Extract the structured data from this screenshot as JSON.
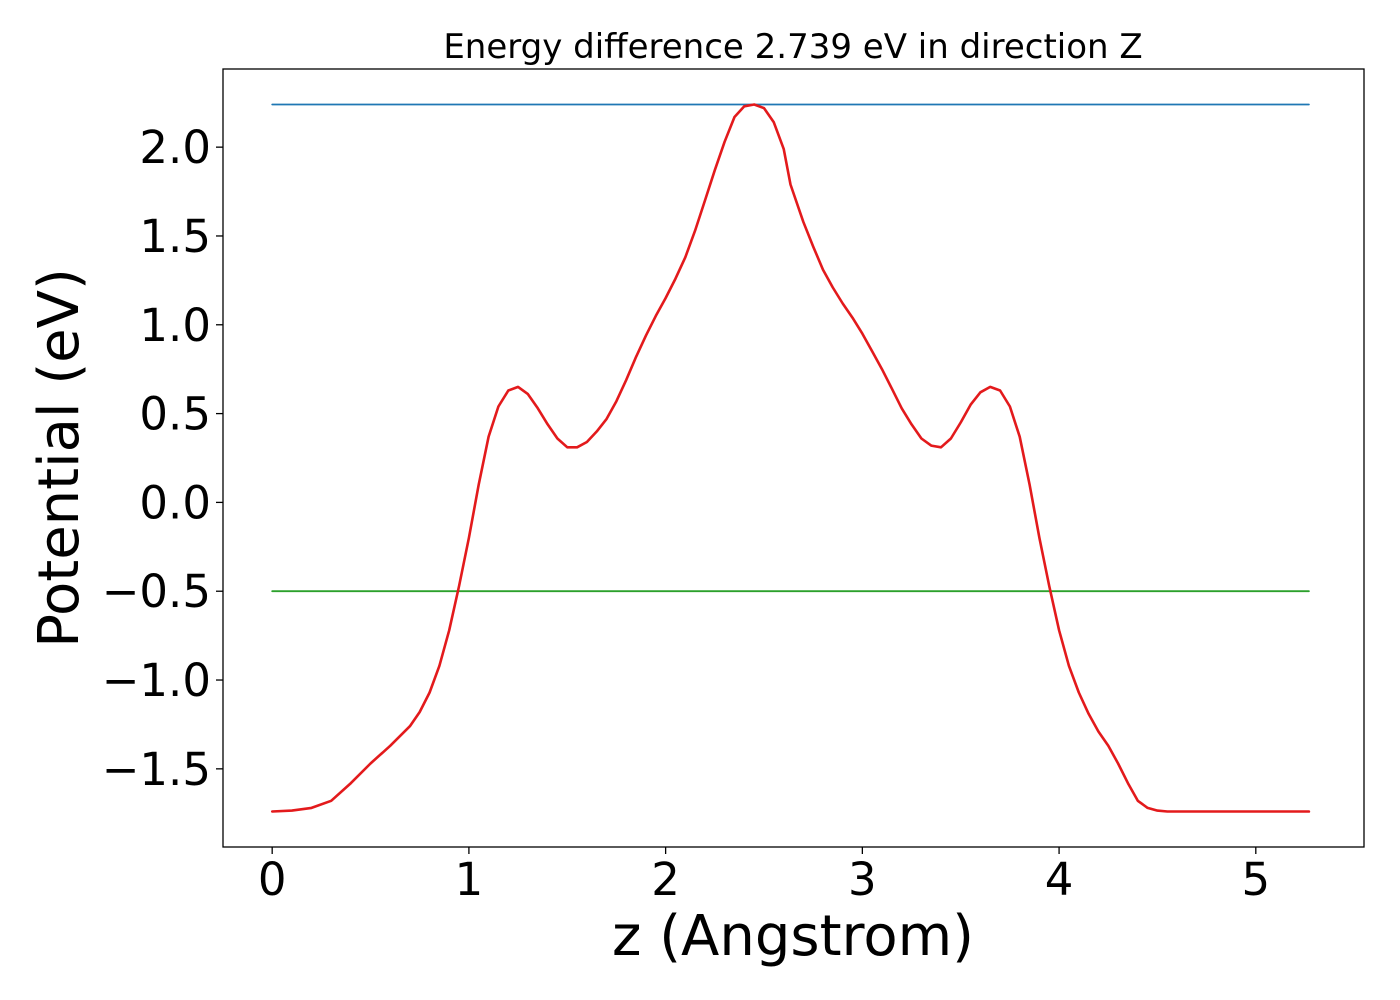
{
  "chart_data": {
    "type": "line",
    "title": "Energy difference 2.739 eV in direction Z",
    "xlabel": "z (Angstrom)",
    "ylabel": "Potential (eV)",
    "xlim": [
      -0.25,
      5.55
    ],
    "ylim": [
      -1.94,
      2.44
    ],
    "grid": false,
    "legend": "none",
    "x_ticks": [
      0,
      1,
      2,
      3,
      4,
      5
    ],
    "x_tick_labels": [
      "0",
      "1",
      "2",
      "3",
      "4",
      "5"
    ],
    "y_ticks": [
      -1.5,
      -1.0,
      -0.5,
      0.0,
      0.5,
      1.0,
      1.5,
      2.0
    ],
    "y_tick_labels": [
      "−1.5",
      "−1.0",
      "−0.5",
      "0.0",
      "0.5",
      "1.0",
      "1.5",
      "2.0"
    ],
    "series": [
      {
        "color": "#1f77b4",
        "x": [
          0,
          5.27
        ],
        "y": [
          2.24,
          2.24
        ]
      },
      {
        "color": "#2ca02c",
        "x": [
          0,
          5.27
        ],
        "y": [
          -0.5,
          -0.5
        ]
      },
      {
        "color": "#e31a1c",
        "x": [
          0,
          0.1,
          0.2,
          0.3,
          0.4,
          0.5,
          0.6,
          0.7,
          0.75,
          0.8,
          0.85,
          0.9,
          0.95,
          1.0,
          1.05,
          1.1,
          1.15,
          1.2,
          1.25,
          1.3,
          1.35,
          1.4,
          1.45,
          1.5,
          1.55,
          1.6,
          1.65,
          1.7,
          1.75,
          1.8,
          1.85,
          1.9,
          1.95,
          2.0,
          2.05,
          2.1,
          2.15,
          2.2,
          2.25,
          2.3,
          2.35,
          2.4,
          2.45,
          2.5,
          2.55,
          2.6,
          2.635,
          2.7,
          2.75,
          2.8,
          2.85,
          2.9,
          2.95,
          3.0,
          3.05,
          3.1,
          3.15,
          3.2,
          3.25,
          3.3,
          3.35,
          3.4,
          3.45,
          3.5,
          3.55,
          3.6,
          3.65,
          3.7,
          3.75,
          3.8,
          3.85,
          3.9,
          3.95,
          4.0,
          4.05,
          4.1,
          4.15,
          4.2,
          4.25,
          4.3,
          4.35,
          4.4,
          4.45,
          4.5,
          4.55,
          4.6,
          4.65,
          4.7,
          4.8,
          4.9,
          5.0,
          5.1,
          5.2,
          5.27
        ],
        "y": [
          -1.74,
          -1.735,
          -1.72,
          -1.68,
          -1.58,
          -1.47,
          -1.37,
          -1.26,
          -1.18,
          -1.07,
          -0.92,
          -0.72,
          -0.47,
          -0.2,
          0.1,
          0.37,
          0.54,
          0.63,
          0.65,
          0.61,
          0.53,
          0.44,
          0.36,
          0.31,
          0.31,
          0.34,
          0.4,
          0.47,
          0.57,
          0.69,
          0.82,
          0.94,
          1.05,
          1.15,
          1.26,
          1.38,
          1.53,
          1.7,
          1.87,
          2.03,
          2.17,
          2.23,
          2.24,
          2.22,
          2.14,
          1.99,
          1.79,
          1.58,
          1.44,
          1.31,
          1.21,
          1.12,
          1.04,
          0.95,
          0.85,
          0.75,
          0.64,
          0.53,
          0.44,
          0.36,
          0.32,
          0.31,
          0.36,
          0.45,
          0.55,
          0.62,
          0.65,
          0.63,
          0.54,
          0.37,
          0.1,
          -0.2,
          -0.47,
          -0.72,
          -0.92,
          -1.07,
          -1.19,
          -1.29,
          -1.37,
          -1.47,
          -1.58,
          -1.68,
          -1.72,
          -1.735,
          -1.74,
          -1.74,
          -1.74,
          -1.74,
          -1.74,
          -1.74,
          -1.74,
          -1.74,
          -1.74,
          -1.74
        ]
      }
    ]
  }
}
